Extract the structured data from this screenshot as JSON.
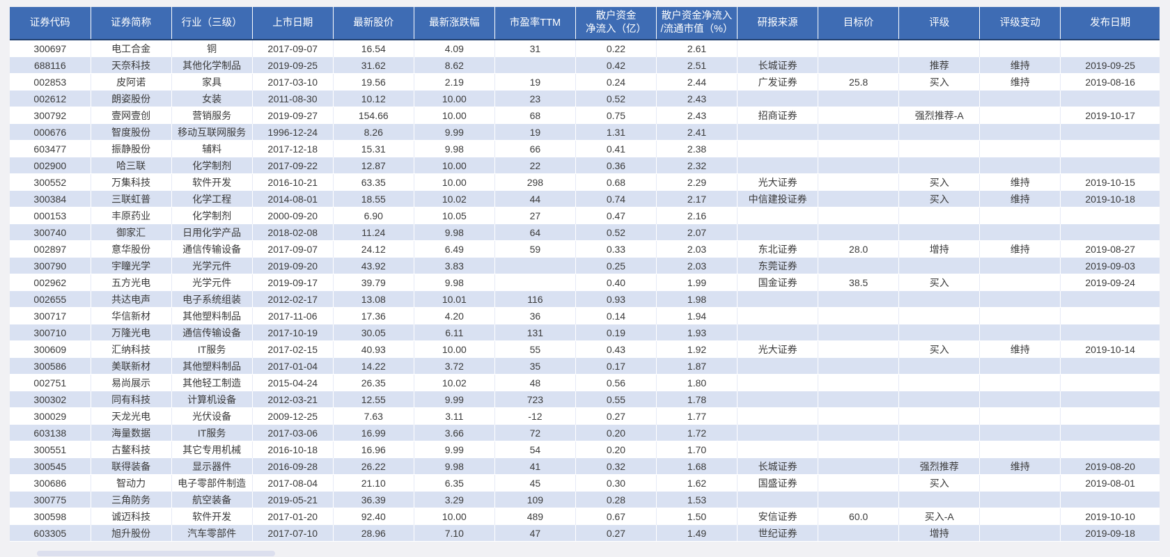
{
  "colors": {
    "header_bg": "#3e6cb4",
    "header_text": "#ffffff",
    "band_row_bg": "#d9e1f2",
    "row_bg": "#ffffff",
    "header_divider": "#22416f",
    "body_text": "#3a3a3a",
    "page_bg": "#f1f1f4"
  },
  "table": {
    "columns": [
      {
        "key": "code",
        "label": "证券代码"
      },
      {
        "key": "name",
        "label": "证券简称"
      },
      {
        "key": "industry",
        "label": "行业（三级）"
      },
      {
        "key": "list-date",
        "label": "上市日期"
      },
      {
        "key": "price",
        "label": "最新股价"
      },
      {
        "key": "change",
        "label": "最新涨跌幅"
      },
      {
        "key": "pe-ttm",
        "label": "市盈率TTM"
      },
      {
        "key": "retail-inflow",
        "label": "散户资金\n净流入（亿）"
      },
      {
        "key": "inflow-ratio",
        "label": "散户资金净流入\n/流通市值（%）"
      },
      {
        "key": "report-source",
        "label": "研报来源"
      },
      {
        "key": "target-price",
        "label": "目标价"
      },
      {
        "key": "rating",
        "label": "评级"
      },
      {
        "key": "rating-change",
        "label": "评级变动"
      },
      {
        "key": "publish-date",
        "label": "发布日期"
      }
    ],
    "rows": [
      [
        "300697",
        "电工合金",
        "铜",
        "2017-09-07",
        "16.54",
        "4.09",
        "31",
        "0.22",
        "2.61",
        "",
        "",
        "",
        "",
        ""
      ],
      [
        "688116",
        "天奈科技",
        "其他化学制品",
        "2019-09-25",
        "31.62",
        "8.62",
        "",
        "0.42",
        "2.51",
        "长城证券",
        "",
        "推荐",
        "维持",
        "2019-09-25"
      ],
      [
        "002853",
        "皮阿诺",
        "家具",
        "2017-03-10",
        "19.56",
        "2.19",
        "19",
        "0.24",
        "2.44",
        "广发证券",
        "25.8",
        "买入",
        "维持",
        "2019-08-16"
      ],
      [
        "002612",
        "朗姿股份",
        "女装",
        "2011-08-30",
        "10.12",
        "10.00",
        "23",
        "0.52",
        "2.43",
        "",
        "",
        "",
        "",
        ""
      ],
      [
        "300792",
        "壹网壹创",
        "营销服务",
        "2019-09-27",
        "154.66",
        "10.00",
        "68",
        "0.75",
        "2.43",
        "招商证券",
        "",
        "强烈推荐-A",
        "",
        "2019-10-17"
      ],
      [
        "000676",
        "智度股份",
        "移动互联网服务",
        "1996-12-24",
        "8.26",
        "9.99",
        "19",
        "1.31",
        "2.41",
        "",
        "",
        "",
        "",
        ""
      ],
      [
        "603477",
        "振静股份",
        "辅料",
        "2017-12-18",
        "15.31",
        "9.98",
        "66",
        "0.41",
        "2.38",
        "",
        "",
        "",
        "",
        ""
      ],
      [
        "002900",
        "哈三联",
        "化学制剂",
        "2017-09-22",
        "12.87",
        "10.00",
        "22",
        "0.36",
        "2.32",
        "",
        "",
        "",
        "",
        ""
      ],
      [
        "300552",
        "万集科技",
        "软件开发",
        "2016-10-21",
        "63.35",
        "10.00",
        "298",
        "0.68",
        "2.29",
        "光大证券",
        "",
        "买入",
        "维持",
        "2019-10-15"
      ],
      [
        "300384",
        "三联虹普",
        "化学工程",
        "2014-08-01",
        "18.55",
        "10.02",
        "44",
        "0.74",
        "2.17",
        "中信建投证券",
        "",
        "买入",
        "维持",
        "2019-10-18"
      ],
      [
        "000153",
        "丰原药业",
        "化学制剂",
        "2000-09-20",
        "6.90",
        "10.05",
        "27",
        "0.47",
        "2.16",
        "",
        "",
        "",
        "",
        ""
      ],
      [
        "300740",
        "御家汇",
        "日用化学产品",
        "2018-02-08",
        "11.24",
        "9.98",
        "64",
        "0.52",
        "2.07",
        "",
        "",
        "",
        "",
        ""
      ],
      [
        "002897",
        "意华股份",
        "通信传输设备",
        "2017-09-07",
        "24.12",
        "6.49",
        "59",
        "0.33",
        "2.03",
        "东北证券",
        "28.0",
        "增持",
        "维持",
        "2019-08-27"
      ],
      [
        "300790",
        "宇瞳光学",
        "光学元件",
        "2019-09-20",
        "43.92",
        "3.83",
        "",
        "0.25",
        "2.03",
        "东莞证券",
        "",
        "",
        "",
        "2019-09-03"
      ],
      [
        "002962",
        "五方光电",
        "光学元件",
        "2019-09-17",
        "39.79",
        "9.98",
        "",
        "0.40",
        "1.99",
        "国金证券",
        "38.5",
        "买入",
        "",
        "2019-09-24"
      ],
      [
        "002655",
        "共达电声",
        "电子系统组装",
        "2012-02-17",
        "13.08",
        "10.01",
        "116",
        "0.93",
        "1.98",
        "",
        "",
        "",
        "",
        ""
      ],
      [
        "300717",
        "华信新材",
        "其他塑料制品",
        "2017-11-06",
        "17.36",
        "4.20",
        "36",
        "0.14",
        "1.94",
        "",
        "",
        "",
        "",
        ""
      ],
      [
        "300710",
        "万隆光电",
        "通信传输设备",
        "2017-10-19",
        "30.05",
        "6.11",
        "131",
        "0.19",
        "1.93",
        "",
        "",
        "",
        "",
        ""
      ],
      [
        "300609",
        "汇纳科技",
        "IT服务",
        "2017-02-15",
        "40.93",
        "10.00",
        "55",
        "0.43",
        "1.92",
        "光大证券",
        "",
        "买入",
        "维持",
        "2019-10-14"
      ],
      [
        "300586",
        "美联新材",
        "其他塑料制品",
        "2017-01-04",
        "14.22",
        "3.72",
        "35",
        "0.17",
        "1.87",
        "",
        "",
        "",
        "",
        ""
      ],
      [
        "002751",
        "易尚展示",
        "其他轻工制造",
        "2015-04-24",
        "26.35",
        "10.02",
        "48",
        "0.56",
        "1.80",
        "",
        "",
        "",
        "",
        ""
      ],
      [
        "300302",
        "同有科技",
        "计算机设备",
        "2012-03-21",
        "12.55",
        "9.99",
        "723",
        "0.55",
        "1.78",
        "",
        "",
        "",
        "",
        ""
      ],
      [
        "300029",
        "天龙光电",
        "光伏设备",
        "2009-12-25",
        "7.63",
        "3.11",
        "-12",
        "0.27",
        "1.77",
        "",
        "",
        "",
        "",
        ""
      ],
      [
        "603138",
        "海量数据",
        "IT服务",
        "2017-03-06",
        "16.99",
        "3.66",
        "72",
        "0.20",
        "1.72",
        "",
        "",
        "",
        "",
        ""
      ],
      [
        "300551",
        "古鳌科技",
        "其它专用机械",
        "2016-10-18",
        "16.96",
        "9.99",
        "54",
        "0.20",
        "1.70",
        "",
        "",
        "",
        "",
        ""
      ],
      [
        "300545",
        "联得装备",
        "显示器件",
        "2016-09-28",
        "26.22",
        "9.98",
        "41",
        "0.32",
        "1.68",
        "长城证券",
        "",
        "强烈推荐",
        "维持",
        "2019-08-20"
      ],
      [
        "300686",
        "智动力",
        "电子零部件制造",
        "2017-08-04",
        "21.10",
        "6.35",
        "45",
        "0.30",
        "1.62",
        "国盛证券",
        "",
        "买入",
        "",
        "2019-08-01"
      ],
      [
        "300775",
        "三角防务",
        "航空装备",
        "2019-05-21",
        "36.39",
        "3.29",
        "109",
        "0.28",
        "1.53",
        "",
        "",
        "",
        "",
        ""
      ],
      [
        "300598",
        "诚迈科技",
        "软件开发",
        "2017-01-20",
        "92.40",
        "10.00",
        "489",
        "0.67",
        "1.50",
        "安信证券",
        "60.0",
        "买入-A",
        "",
        "2019-10-10"
      ],
      [
        "603305",
        "旭升股份",
        "汽车零部件",
        "2017-07-10",
        "28.96",
        "7.10",
        "47",
        "0.27",
        "1.49",
        "世纪证券",
        "",
        "增持",
        "",
        "2019-09-18"
      ]
    ]
  },
  "scrollbar": {
    "orientation": "horizontal"
  }
}
